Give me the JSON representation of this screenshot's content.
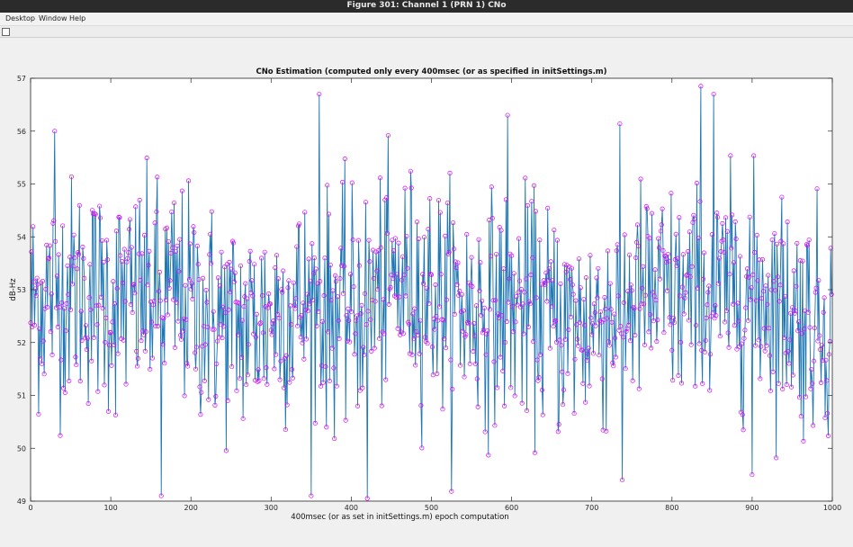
{
  "window": {
    "title": "Figure 301: Channel 1 (PRN 1) CNo"
  },
  "menu": [
    {
      "label": "Desktop"
    },
    {
      "label": "Window"
    },
    {
      "label": "Help"
    }
  ],
  "icons": {
    "toolbar": "figure-tool-icon"
  },
  "colors": {
    "line": "#1f77b4",
    "marker": "#e000ff",
    "axes_bg": "#ffffff",
    "grid": "#e6e6e6"
  },
  "chart_data": {
    "type": "line",
    "title": "CNo Estimation (computed only every 400msec (or as specified in initSettings.m)",
    "xlabel": "400msec (or as set in initSettings.m) epoch computation",
    "ylabel": "dB-Hz",
    "xlim": [
      0,
      1000
    ],
    "ylim": [
      49,
      57
    ],
    "xticks": [
      0,
      100,
      200,
      300,
      400,
      500,
      600,
      700,
      800,
      900,
      1000
    ],
    "yticks": [
      49,
      50,
      51,
      52,
      53,
      54,
      55,
      56,
      57
    ],
    "marker": "circle",
    "n_points": 1000,
    "mean": 52.7,
    "std": 1.05,
    "notable_points": [
      {
        "x": 30,
        "y": 56.0
      },
      {
        "x": 163,
        "y": 49.1
      },
      {
        "x": 360,
        "y": 56.7
      },
      {
        "x": 420,
        "y": 49.05
      },
      {
        "x": 595,
        "y": 56.3
      },
      {
        "x": 738,
        "y": 49.4
      },
      {
        "x": 836,
        "y": 56.85
      },
      {
        "x": 852,
        "y": 56.7
      },
      {
        "x": 900,
        "y": 49.5
      }
    ]
  }
}
